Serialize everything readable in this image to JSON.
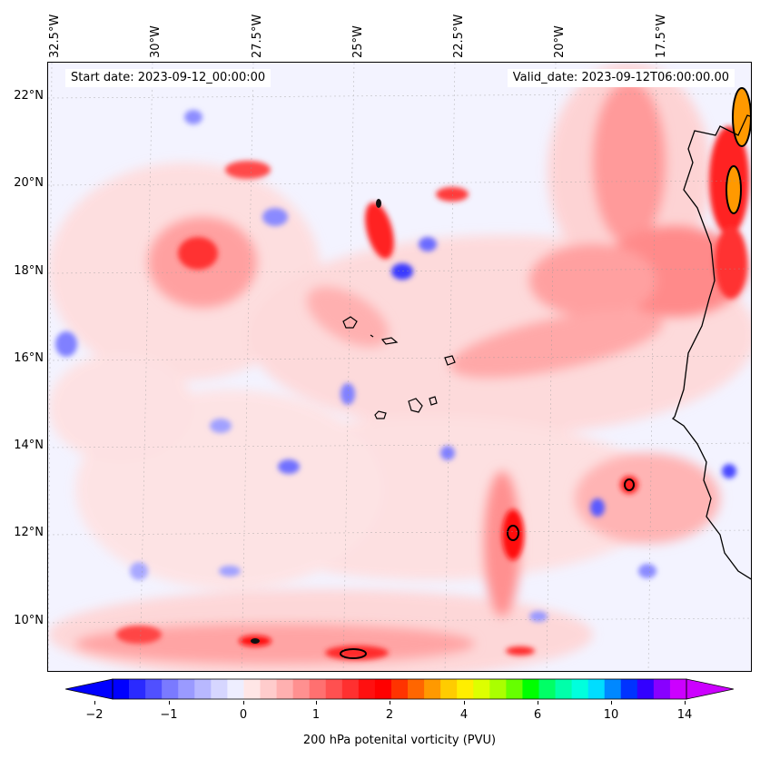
{
  "header": {
    "start_date": "Start date: 2023-09-12_00:00:00",
    "valid_date": "Valid_date: 2023-09-12T06:00:00.00"
  },
  "axes": {
    "lon_labels": [
      "32.5°W",
      "30°W",
      "27.5°W",
      "25°W",
      "22.5°W",
      "20°W",
      "17.5°W"
    ],
    "lat_labels": [
      "22°N",
      "20°N",
      "18°N",
      "16°N",
      "14°N",
      "12°N",
      "10°N"
    ]
  },
  "colorbar": {
    "label": "200 hPa potenital vorticity (PVU)",
    "ticks": [
      "−2",
      "−1",
      "0",
      "1",
      "2",
      "4",
      "6",
      "10",
      "14"
    ],
    "colors": [
      "#0000ff",
      "#2a2aff",
      "#5050ff",
      "#7a7aff",
      "#9a9aff",
      "#b8b8ff",
      "#d6d6ff",
      "#eeeeff",
      "#ffe6e6",
      "#ffcccc",
      "#ffb0b0",
      "#ff9090",
      "#ff7070",
      "#ff5050",
      "#ff3030",
      "#ff1010",
      "#ff0000",
      "#ff3300",
      "#ff6600",
      "#ff9900",
      "#ffcc00",
      "#ffee00",
      "#ddff00",
      "#aaff00",
      "#66ff00",
      "#00ff00",
      "#00ff66",
      "#00ffaa",
      "#00ffdd",
      "#00ddff",
      "#0088ff",
      "#0033ff",
      "#3300ff",
      "#8800ff",
      "#cc00ff"
    ]
  },
  "map": {
    "background_color": "#f3f3ff",
    "pv_max_color": "#ff0000",
    "pv_min_color": "#0000ff"
  }
}
